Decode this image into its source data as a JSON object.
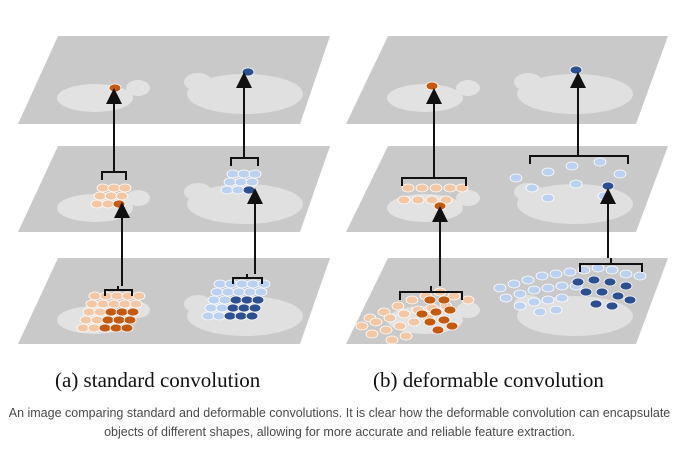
{
  "figure": {
    "panel_a_caption": "(a) standard convolution",
    "panel_b_caption": "(b) deformable convolution"
  },
  "caption": "An image comparing standard and deformable convolutions. It is clear how the deformable convolution can encapsulate objects of different shapes, allowing for more accurate and reliable feature extraction.",
  "colors": {
    "plane_fill": "#c9c9c9",
    "orange_dark": "#c45a12",
    "orange_light": "#f2c7a6",
    "blue_dark": "#2d4f8f",
    "blue_light": "#bcd0ef",
    "arrow": "#111111"
  },
  "icons": [
    "lamb-silhouette",
    "sheep-silhouette",
    "arrow-up"
  ]
}
